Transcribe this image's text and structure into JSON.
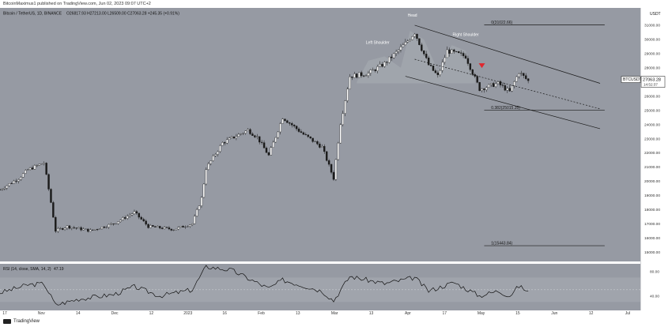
{
  "header": {
    "publish_line": "BitcoinMaximus1 published on TradingView.com, Jun 02, 2023 09:07 UTC+2"
  },
  "symbol_line": {
    "pair": "Bitcoin / TetherUS, 1D, BINANCE",
    "ohlc": "O26817.93  H27213.00  L26509.00  C27063.28  +245.35 (+0.91%)"
  },
  "price_axis": {
    "currency": "USDT",
    "ticks": [
      "31000.00",
      "30000.00",
      "29000.00",
      "28000.00",
      "27000.00",
      "26000.00",
      "25000.00",
      "24000.00",
      "23000.00",
      "22000.00",
      "21000.00",
      "20000.00",
      "19000.00",
      "18000.00",
      "17000.00",
      "16000.00",
      "15000.00"
    ]
  },
  "price_tag": {
    "symbol": "BTCUSDT",
    "price": "27063.28",
    "countdown": "14:52:37"
  },
  "annotations": {
    "head": "Head",
    "left_shoulder": "Left Shoulder",
    "right_shoulder": "Right Shoulder",
    "fib_0": "0(31022.66)",
    "fib_382": "0.382(25015.35)",
    "fib_1": "1(15443.84)"
  },
  "rsi": {
    "label": "RSI (14, close, SMA, 14, 2)",
    "value": "47.19",
    "ticks": [
      "80.00",
      "40.00"
    ]
  },
  "time_axis": [
    "17",
    "Nov",
    "14",
    "Dec",
    "12",
    "2023",
    "16",
    "Feb",
    "13",
    "Mar",
    "13",
    "Apr",
    "17",
    "May",
    "15",
    "Jun",
    "12",
    "Jul"
  ],
  "footer": {
    "brand": "TradingView"
  },
  "colors": {
    "panel_bg": "#969aa3",
    "up": "#ffffff",
    "down": "#1a1a1a",
    "line": "#1a1a1a",
    "marker": "#e0262d"
  },
  "chart_data": {
    "type": "candlestick",
    "title": "Bitcoin / TetherUS, 1D, BINANCE",
    "ylabel": "USDT",
    "ylim": [
      14500,
      32000
    ],
    "x_start": "2022-10-17",
    "x_end": "2023-07-17",
    "close_path": [
      [
        "2022-10-17",
        19400
      ],
      [
        "2022-10-25",
        20200
      ],
      [
        "2022-10-29",
        20800
      ],
      [
        "2022-11-05",
        21300
      ],
      [
        "2022-11-08",
        18500
      ],
      [
        "2022-11-10",
        16500
      ],
      [
        "2022-11-15",
        16800
      ],
      [
        "2022-11-25",
        16500
      ],
      [
        "2022-12-05",
        17000
      ],
      [
        "2022-12-14",
        17800
      ],
      [
        "2022-12-20",
        16800
      ],
      [
        "2022-12-31",
        16600
      ],
      [
        "2023-01-08",
        17000
      ],
      [
        "2023-01-12",
        18800
      ],
      [
        "2023-01-14",
        20900
      ],
      [
        "2023-01-21",
        22700
      ],
      [
        "2023-02-01",
        23600
      ],
      [
        "2023-02-05",
        23100
      ],
      [
        "2023-02-10",
        21800
      ],
      [
        "2023-02-16",
        24500
      ],
      [
        "2023-02-25",
        23300
      ],
      [
        "2023-03-05",
        22400
      ],
      [
        "2023-03-10",
        20200
      ],
      [
        "2023-03-13",
        24100
      ],
      [
        "2023-03-17",
        27400
      ],
      [
        "2023-03-25",
        27600
      ],
      [
        "2023-04-01",
        28300
      ],
      [
        "2023-04-10",
        29700
      ],
      [
        "2023-04-14",
        30500
      ],
      [
        "2023-04-20",
        28200
      ],
      [
        "2023-04-24",
        27400
      ],
      [
        "2023-04-28",
        29200
      ],
      [
        "2023-05-06",
        28800
      ],
      [
        "2023-05-12",
        26500
      ],
      [
        "2023-05-20",
        26900
      ],
      [
        "2023-05-25",
        26300
      ],
      [
        "2023-05-29",
        27700
      ],
      [
        "2023-06-02",
        27063.28
      ]
    ],
    "levels": [
      {
        "label": "0(31022.66)",
        "value": 31022.66
      },
      {
        "label": "0.382(25015.35)",
        "value": 25015.35
      },
      {
        "label": "1(15443.84)",
        "value": 15443.84
      }
    ],
    "rsi_ylim": [
      20,
      90
    ],
    "rsi_path": [
      [
        "2022-10-17",
        45
      ],
      [
        "2022-10-29",
        58
      ],
      [
        "2022-11-05",
        60
      ],
      [
        "2022-11-10",
        25
      ],
      [
        "2022-11-20",
        35
      ],
      [
        "2022-12-05",
        42
      ],
      [
        "2022-12-14",
        55
      ],
      [
        "2022-12-25",
        40
      ],
      [
        "2023-01-08",
        50
      ],
      [
        "2023-01-14",
        88
      ],
      [
        "2023-01-25",
        82
      ],
      [
        "2023-02-10",
        52
      ],
      [
        "2023-02-16",
        66
      ],
      [
        "2023-03-05",
        48
      ],
      [
        "2023-03-10",
        32
      ],
      [
        "2023-03-17",
        72
      ],
      [
        "2023-04-01",
        60
      ],
      [
        "2023-04-14",
        70
      ],
      [
        "2023-04-20",
        48
      ],
      [
        "2023-05-01",
        62
      ],
      [
        "2023-05-12",
        40
      ],
      [
        "2023-05-20",
        48
      ],
      [
        "2023-05-25",
        40
      ],
      [
        "2023-05-29",
        56
      ],
      [
        "2023-06-02",
        47.19
      ]
    ]
  }
}
